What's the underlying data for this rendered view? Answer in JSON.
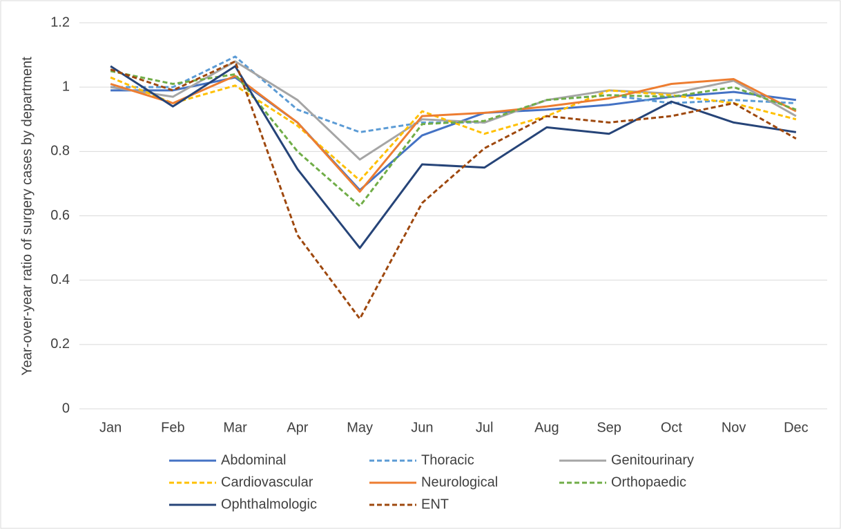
{
  "chart_data": {
    "type": "line",
    "y_label": "Year-over-year ratio of surgery cases by department",
    "categories": [
      "Jan",
      "Feb",
      "Mar",
      "Apr",
      "May",
      "Jun",
      "Jul",
      "Aug",
      "Sep",
      "Oct",
      "Nov",
      "Dec"
    ],
    "ylim": [
      0,
      1.2
    ],
    "yticks": [
      0,
      0.2,
      0.4,
      0.6,
      0.8,
      1,
      1.2
    ],
    "grid": true,
    "legend": "bottom",
    "series": [
      {
        "name": "Abdominal",
        "color": "#4472c4",
        "line_style": "solid",
        "values": [
          0.99,
          0.99,
          1.03,
          0.89,
          0.68,
          0.85,
          0.92,
          0.93,
          0.945,
          0.97,
          0.985,
          0.96
        ]
      },
      {
        "name": "Thoracic",
        "color": "#5b9bd5",
        "line_style": "dashed",
        "values": [
          1.0,
          1.0,
          1.095,
          0.93,
          0.86,
          0.89,
          0.89,
          0.96,
          0.975,
          0.95,
          0.96,
          0.95
        ]
      },
      {
        "name": "Genitourinary",
        "color": "#a5a5a5",
        "line_style": "solid",
        "values": [
          1.0,
          0.97,
          1.08,
          0.96,
          0.775,
          0.9,
          0.89,
          0.96,
          0.99,
          0.98,
          1.02,
          0.91
        ]
      },
      {
        "name": "Cardiovascular",
        "color": "#ffc000",
        "line_style": "dashed",
        "values": [
          1.03,
          0.95,
          1.005,
          0.88,
          0.71,
          0.925,
          0.855,
          0.91,
          0.99,
          0.975,
          0.95,
          0.9
        ]
      },
      {
        "name": "Neurological",
        "color": "#ed7d31",
        "line_style": "solid",
        "values": [
          1.01,
          0.95,
          1.035,
          0.89,
          0.675,
          0.91,
          0.92,
          0.94,
          0.965,
          1.01,
          1.025,
          0.925
        ]
      },
      {
        "name": "Orthopaedic",
        "color": "#70ad47",
        "line_style": "dashed",
        "values": [
          1.05,
          1.01,
          1.04,
          0.8,
          0.63,
          0.885,
          0.895,
          0.96,
          0.975,
          0.97,
          1.0,
          0.93
        ]
      },
      {
        "name": "Ophthalmologic",
        "color": "#264478",
        "line_style": "solid",
        "values": [
          1.065,
          0.94,
          1.065,
          0.745,
          0.5,
          0.76,
          0.75,
          0.875,
          0.855,
          0.955,
          0.89,
          0.86
        ]
      },
      {
        "name": "ENT",
        "color": "#9e480e",
        "line_style": "dashed",
        "values": [
          1.055,
          0.99,
          1.08,
          0.54,
          0.28,
          0.64,
          0.81,
          0.91,
          0.89,
          0.91,
          0.95,
          0.84
        ]
      }
    ]
  }
}
